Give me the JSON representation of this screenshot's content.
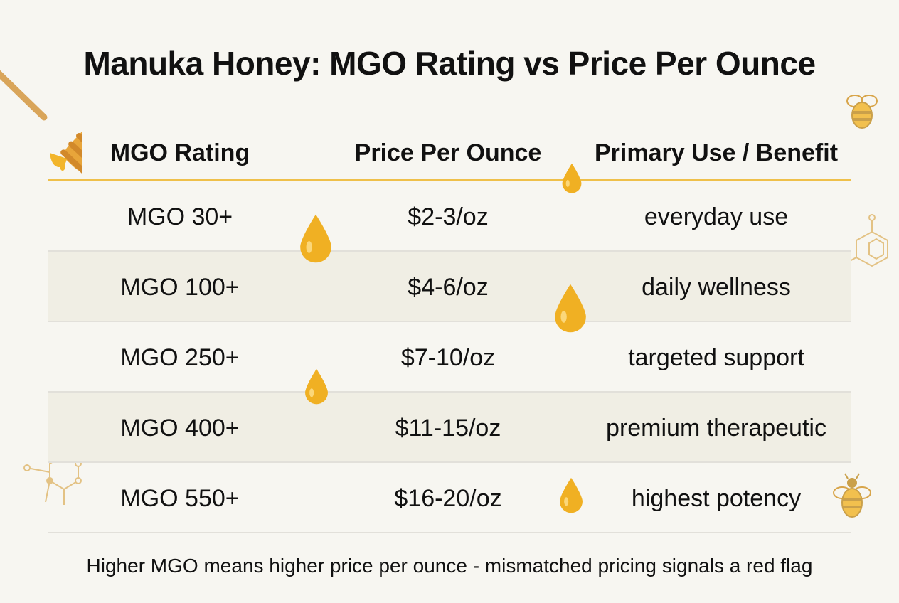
{
  "title": "Manuka Honey: MGO Rating vs Price Per Ounce",
  "table": {
    "headers": [
      "MGO Rating",
      "Price Per Ounce",
      "Primary Use / Benefit"
    ],
    "rows": [
      {
        "rating": "MGO 30+",
        "price": "$2-3/oz",
        "use": "everyday use"
      },
      {
        "rating": "MGO 100+",
        "price": "$4-6/oz",
        "use": "daily wellness"
      },
      {
        "rating": "MGO 250+",
        "price": "$7-10/oz",
        "use": "targeted support"
      },
      {
        "rating": "MGO 400+",
        "price": "$11-15/oz",
        "use": "premium therapeutic"
      },
      {
        "rating": "MGO 550+",
        "price": "$16-20/oz",
        "use": "highest potency"
      }
    ]
  },
  "footer": "Higher MGO means higher price per ounce - mismatched pricing signals a red flag",
  "colors": {
    "accent": "#efc04a",
    "honey": "#f0a91c",
    "row_alt": "#f0eee4",
    "background": "#f7f6f1"
  },
  "icons": [
    "honey-dipper-icon",
    "bee-icon",
    "honey-drop-icon",
    "molecule-icon"
  ]
}
